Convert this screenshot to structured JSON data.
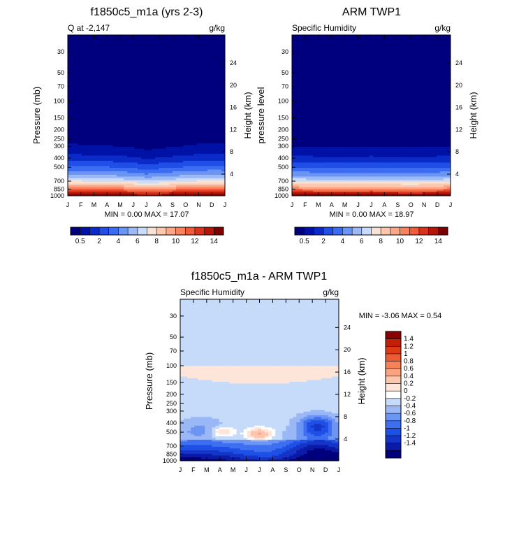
{
  "colors": {
    "q_scale": [
      "#00007f",
      "#0011a6",
      "#0a2bc8",
      "#1f4fe6",
      "#3b6cf2",
      "#6b95f5",
      "#9dbaf7",
      "#cadcfb",
      "#f7e3d6",
      "#fdc8ad",
      "#fca888",
      "#f9835f",
      "#ef5a3a",
      "#d8331c",
      "#b21708",
      "#7f0000"
    ],
    "diff_scale": [
      "#00007f",
      "#0b1ba8",
      "#1435c8",
      "#1f50e6",
      "#3e6ff0",
      "#6d95f3",
      "#9ab7f6",
      "#c6dbfa",
      "#ffffff",
      "#fde6d9",
      "#fcc6ad",
      "#faa381",
      "#f7815a",
      "#ee5a32",
      "#de3a16",
      "#c11f06",
      "#8b0000"
    ]
  },
  "chart_data": [
    {
      "id": "model",
      "type": "heatmap",
      "title": "f1850c5_m1a (yrs 2-3)",
      "left_label": "Q at -2,147",
      "right_label": "g/kg",
      "ylabel": "Pressure (mb)",
      "right_axis_label": "Height (km)",
      "x_ticks": [
        "J",
        "F",
        "M",
        "A",
        "M",
        "J",
        "J",
        "A",
        "S",
        "O",
        "N",
        "D",
        "J"
      ],
      "p_ticks": [
        "30",
        "50",
        "70",
        "100",
        "150",
        "200",
        "250",
        "300",
        "400",
        "500",
        "700",
        "850",
        "1000"
      ],
      "h_ticks": [
        "4",
        "8",
        "12",
        "16",
        "20",
        "24"
      ],
      "min_max": "MIN =   0.00 MAX =  17.07",
      "colorbar_labels": [
        "0.5",
        "2",
        "4",
        "6",
        "8",
        "10",
        "12",
        "14"
      ],
      "shift_p": [
        20,
        12,
        8,
        5,
        0,
        -8,
        -30,
        -15,
        -5,
        5,
        15,
        22,
        20
      ]
    },
    {
      "id": "obs",
      "type": "heatmap",
      "title": "ARM TWP1",
      "left_label": "Specific Humidity",
      "right_label": "g/kg",
      "ylabel": "pressure level",
      "right_axis_label": "Height (km)",
      "x_ticks": [
        "J",
        "F",
        "M",
        "A",
        "M",
        "J",
        "J",
        "A",
        "S",
        "O",
        "N",
        "D",
        "J"
      ],
      "p_ticks": [
        "30",
        "50",
        "70",
        "100",
        "150",
        "200",
        "250",
        "300",
        "400",
        "500",
        "700",
        "850",
        "1000"
      ],
      "h_ticks": [
        "4",
        "8",
        "12",
        "16",
        "20",
        "24"
      ],
      "min_max": "MIN =   0.00 MAX =  18.97",
      "colorbar_labels": [
        "0.5",
        "2",
        "4",
        "6",
        "8",
        "10",
        "12",
        "14"
      ],
      "shift_p": [
        0,
        -3,
        -5,
        -8,
        -8,
        -6,
        -4,
        -6,
        -8,
        -10,
        -8,
        -5,
        0
      ]
    },
    {
      "id": "diff",
      "type": "heatmap",
      "title": "f1850c5_m1a - ARM TWP1",
      "left_label": "Specific Humidity",
      "right_label": "g/kg",
      "ylabel": "Pressure (mb)",
      "right_axis_label": "Height (km)",
      "x_ticks": [
        "J",
        "F",
        "M",
        "A",
        "M",
        "J",
        "J",
        "A",
        "S",
        "O",
        "N",
        "D",
        "J"
      ],
      "p_ticks": [
        "30",
        "50",
        "70",
        "100",
        "150",
        "200",
        "250",
        "300",
        "400",
        "500",
        "700",
        "850",
        "1000"
      ],
      "h_ticks": [
        "4",
        "8",
        "12",
        "16",
        "20",
        "24"
      ],
      "min_max": "MIN =  -3.06 MAX =   0.54",
      "colorbar_labels": [
        "1.4",
        "1.2",
        "1",
        "0.8",
        "0.6",
        "0.4",
        "0.2",
        "0",
        "-0.2",
        "-0.4",
        "-0.6",
        "-0.8",
        "-1",
        "-1.2",
        "-1.4"
      ]
    }
  ]
}
